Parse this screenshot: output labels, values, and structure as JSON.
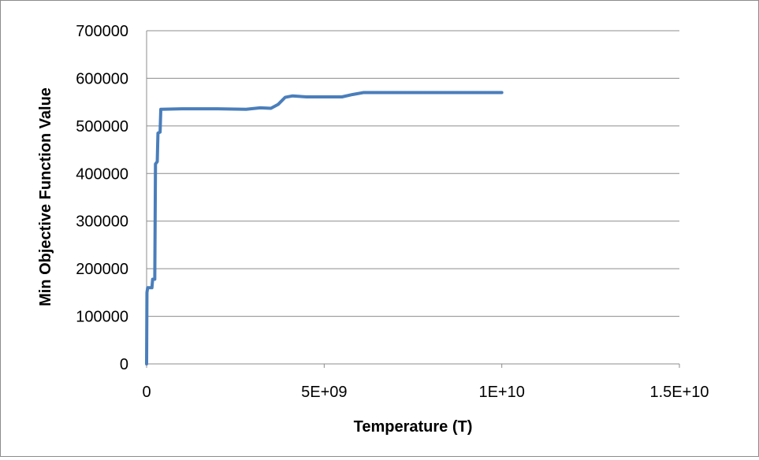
{
  "chart_data": {
    "type": "line",
    "title": "",
    "xlabel": "Temperature (T)",
    "ylabel": "Min Objective Function Value",
    "xlim": [
      0,
      15000000000
    ],
    "ylim": [
      0,
      700000
    ],
    "x_ticks": [
      {
        "value": 0,
        "label": "0"
      },
      {
        "value": 5000000000,
        "label": "5E+09"
      },
      {
        "value": 10000000000,
        "label": "1E+10"
      },
      {
        "value": 15000000000,
        "label": "1.5E+10"
      }
    ],
    "y_ticks": [
      {
        "value": 0,
        "label": "0"
      },
      {
        "value": 100000,
        "label": "100000"
      },
      {
        "value": 200000,
        "label": "200000"
      },
      {
        "value": 300000,
        "label": "300000"
      },
      {
        "value": 400000,
        "label": "400000"
      },
      {
        "value": 500000,
        "label": "500000"
      },
      {
        "value": 600000,
        "label": "600000"
      },
      {
        "value": 700000,
        "label": "700000"
      }
    ],
    "grid": "horizontal",
    "legend": "none",
    "series": [
      {
        "color": "#4a7ebb",
        "points": [
          [
            0,
            0
          ],
          [
            10000000,
            150000
          ],
          [
            30000000,
            160000
          ],
          [
            150000000,
            160000
          ],
          [
            170000000,
            178000
          ],
          [
            230000000,
            178000
          ],
          [
            250000000,
            420000
          ],
          [
            300000000,
            425000
          ],
          [
            320000000,
            485000
          ],
          [
            380000000,
            487000
          ],
          [
            400000000,
            535000
          ],
          [
            1000000000,
            536000
          ],
          [
            2000000000,
            536000
          ],
          [
            2800000000,
            535000
          ],
          [
            3200000000,
            538000
          ],
          [
            3500000000,
            537000
          ],
          [
            3700000000,
            545000
          ],
          [
            3900000000,
            560000
          ],
          [
            4100000000,
            563000
          ],
          [
            4500000000,
            561000
          ],
          [
            5000000000,
            561000
          ],
          [
            5500000000,
            561000
          ],
          [
            5800000000,
            566000
          ],
          [
            6100000000,
            570000
          ],
          [
            6500000000,
            570000
          ],
          [
            7500000000,
            570000
          ],
          [
            8500000000,
            570000
          ],
          [
            10000000000,
            570000
          ]
        ]
      }
    ]
  }
}
